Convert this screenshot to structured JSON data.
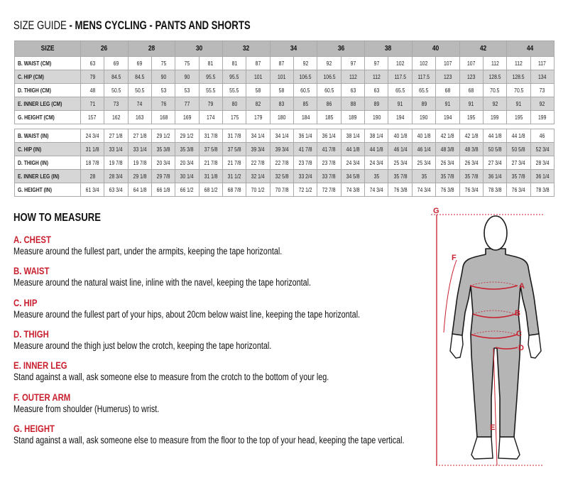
{
  "title": {
    "prefix": "SIZE GUIDE",
    "rest": " - MENS CYCLING - PANTS AND SHORTS"
  },
  "table": {
    "size_label": "SIZE",
    "sizes": [
      "26",
      "28",
      "30",
      "32",
      "34",
      "36",
      "38",
      "40",
      "42",
      "44"
    ],
    "cm_rows": [
      {
        "label": "B. WAIST (CM)",
        "shade": false,
        "values": [
          "63",
          "69",
          "69",
          "75",
          "75",
          "81",
          "81",
          "87",
          "87",
          "92",
          "92",
          "97",
          "97",
          "102",
          "102",
          "107",
          "107",
          "112",
          "112",
          "117"
        ]
      },
      {
        "label": "C. HIP (CM)",
        "shade": true,
        "values": [
          "79",
          "84.5",
          "84.5",
          "90",
          "90",
          "95.5",
          "95.5",
          "101",
          "101",
          "106.5",
          "106.5",
          "112",
          "112",
          "117.5",
          "117.5",
          "123",
          "123",
          "128.5",
          "128.5",
          "134"
        ]
      },
      {
        "label": "D. THIGH (CM)",
        "shade": false,
        "values": [
          "48",
          "50.5",
          "50.5",
          "53",
          "53",
          "55.5",
          "55.5",
          "58",
          "58",
          "60.5",
          "60.5",
          "63",
          "63",
          "65.5",
          "65.5",
          "68",
          "68",
          "70.5",
          "70.5",
          "73"
        ]
      },
      {
        "label": "E. INNER LEG (CM)",
        "shade": true,
        "values": [
          "71",
          "73",
          "74",
          "76",
          "77",
          "79",
          "80",
          "82",
          "83",
          "85",
          "86",
          "88",
          "89",
          "91",
          "89",
          "91",
          "91",
          "92",
          "91",
          "92"
        ]
      },
      {
        "label": "G. HEIGHT (CM)",
        "shade": false,
        "values": [
          "157",
          "162",
          "163",
          "168",
          "169",
          "174",
          "175",
          "179",
          "180",
          "184",
          "185",
          "189",
          "190",
          "194",
          "190",
          "194",
          "195",
          "199",
          "195",
          "199"
        ]
      }
    ],
    "in_rows": [
      {
        "label": "B. WAIST (IN)",
        "shade": false,
        "values": [
          "24 3/4",
          "27 1/8",
          "27 1/8",
          "29 1/2",
          "29 1/2",
          "31 7/8",
          "31 7/8",
          "34 1/4",
          "34 1/4",
          "36 1/4",
          "36 1/4",
          "38 1/4",
          "38 1/4",
          "40 1/8",
          "40 1/8",
          "42 1/8",
          "42 1/8",
          "44 1/8",
          "44 1/8",
          "46"
        ]
      },
      {
        "label": "C. HIP (IN)",
        "shade": true,
        "values": [
          "31 1/8",
          "33 1/4",
          "33 1/4",
          "35 3/8",
          "35 3/8",
          "37 5/8",
          "37 5/8",
          "39 3/4",
          "39 3/4",
          "41 7/8",
          "41 7/8",
          "44 1/8",
          "44 1/8",
          "46 1/4",
          "46 1/4",
          "48 3/8",
          "48 3/8",
          "50 5/8",
          "50 5/8",
          "52 3/4"
        ]
      },
      {
        "label": "D. THIGH (IN)",
        "shade": false,
        "values": [
          "18 7/8",
          "19 7/8",
          "19 7/8",
          "20 3/4",
          "20 3/4",
          "21 7/8",
          "21 7/8",
          "22 7/8",
          "22 7/8",
          "23 7/8",
          "23 7/8",
          "24 3/4",
          "24 3/4",
          "25 3/4",
          "25 3/4",
          "26 3/4",
          "26 3/4",
          "27 3/4",
          "27 3/4",
          "28 3/4"
        ]
      },
      {
        "label": "E. INNER LEG (IN)",
        "shade": true,
        "values": [
          "28",
          "28 3/4",
          "29 1/8",
          "29 7/8",
          "30 1/4",
          "31 1/8",
          "31 1/2",
          "32 1/4",
          "32 5/8",
          "33 2/4",
          "33 7/8",
          "34 5/8",
          "35",
          "35 7/8",
          "35",
          "35 7/8",
          "35 7/8",
          "36 1/4",
          "35 7/8",
          "36 1/4"
        ]
      },
      {
        "label": "G. HEIGHT (IN)",
        "shade": false,
        "values": [
          "61 3/4",
          "63 3/4",
          "64 1/8",
          "66 1/8",
          "66 1/2",
          "68 1/2",
          "68 7/8",
          "70 1/2",
          "70 7/8",
          "72 1/2",
          "72 7/8",
          "74 3/8",
          "74 3/4",
          "76 3/8",
          "74 3/4",
          "76 3/8",
          "76 3/4",
          "78 3/8",
          "76 3/4",
          "78 3/8"
        ]
      }
    ]
  },
  "how_to_measure": {
    "heading": "HOW TO MEASURE",
    "sections": [
      {
        "title": "A. CHEST",
        "text": "Measure around the fullest part, under the armpits, keeping the tape horizontal."
      },
      {
        "title": "B. WAIST",
        "text": "Measure around the natural waist line, inline with the navel, keeping the tape horizontal."
      },
      {
        "title": "C. HIP",
        "text": "Measure around the fullest part of your hips, about 20cm below waist line, keeping the tape horizontal."
      },
      {
        "title": "D. THIGH",
        "text": "Measure around the thigh just below the crotch, keeping the tape horizontal."
      },
      {
        "title": "E. INNER LEG",
        "text": "Stand against a wall, ask someone else to measure from the crotch to the bottom of your leg."
      },
      {
        "title": "F. OUTER ARM",
        "text": "Measure from shoulder (Humerus) to wrist."
      },
      {
        "title": "G. HEIGHT",
        "text": "Stand against a wall, ask someone else to measure from the floor to the top of your head, keeping the tape vertical."
      }
    ]
  },
  "figure": {
    "labels": {
      "a": "A",
      "b": "B",
      "c": "C",
      "d": "D",
      "e": "E",
      "f": "F",
      "g": "G"
    },
    "colors": {
      "measure_red": "#c8202e",
      "suit_gray": "#b5b5b5",
      "outline": "#1a1a1a"
    }
  },
  "colors": {
    "accent_red": "#c8202e",
    "header_gray": "#b9b9b9",
    "row_shade": "#d6d6d6"
  }
}
